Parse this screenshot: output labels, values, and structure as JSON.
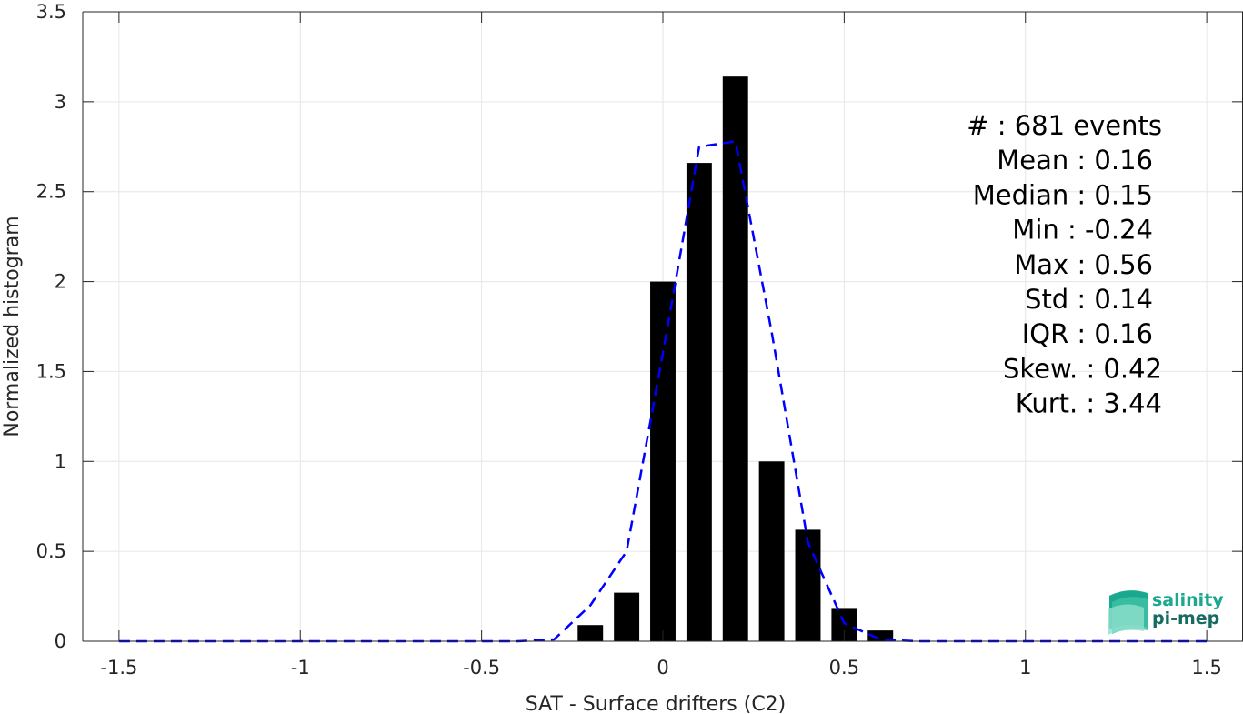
{
  "chart_data": {
    "type": "bar",
    "xlabel": "SAT - Surface drifters (C2)",
    "ylabel": "Normalized histogram",
    "xlim": [
      -1.6,
      1.6
    ],
    "ylim": [
      0,
      3.5
    ],
    "x_ticks": [
      -1.5,
      -1,
      -0.5,
      0,
      0.5,
      1,
      1.5
    ],
    "x_tick_labels": [
      "-1.5",
      "-1",
      "-0.5",
      "0",
      "0.5",
      "1",
      "1.5"
    ],
    "y_ticks": [
      0,
      0.5,
      1,
      1.5,
      2,
      2.5,
      3,
      3.5
    ],
    "y_tick_labels": [
      "0",
      "0.5",
      "1",
      "1.5",
      "2",
      "2.5",
      "3",
      "3.5"
    ],
    "grid": true,
    "bar_width": 0.07,
    "bars": {
      "x": [
        -0.2,
        -0.1,
        0.0,
        0.1,
        0.2,
        0.3,
        0.4,
        0.5,
        0.6
      ],
      "values": [
        0.09,
        0.27,
        2.0,
        2.66,
        3.14,
        1.0,
        0.62,
        0.18,
        0.06
      ],
      "color": "#000000"
    },
    "fit_line": {
      "style": "dashed",
      "color": "#0000ff",
      "x": [
        -1.5,
        -0.6,
        -0.4,
        -0.3,
        -0.2,
        -0.1,
        0.0,
        0.1,
        0.2,
        0.3,
        0.4,
        0.5,
        0.6,
        0.7,
        1.0,
        1.5
      ],
      "y": [
        0,
        0,
        0,
        0.01,
        0.2,
        0.5,
        1.6,
        2.75,
        2.78,
        1.72,
        0.55,
        0.1,
        0.01,
        0,
        0,
        0
      ]
    },
    "stats": [
      {
        "label": "#  ",
        "value": ": 681 events"
      },
      {
        "label": "Mean ",
        "value": ": 0.16"
      },
      {
        "label": "Median ",
        "value": ": 0.15"
      },
      {
        "label": "Min ",
        "value": ": -0.24"
      },
      {
        "label": "Max ",
        "value": ": 0.56"
      },
      {
        "label": "Std ",
        "value": ": 0.14"
      },
      {
        "label": "IQR ",
        "value": ": 0.16"
      },
      {
        "label": "Skew. ",
        "value": ": 0.42"
      },
      {
        "label": "Kurt. ",
        "value": ": 3.44"
      }
    ]
  },
  "logo": {
    "line1": "salinity",
    "line2": "pi-mep",
    "color1": "#1aa88f",
    "color2": "#176b63"
  },
  "colors": {
    "axis": "#262626",
    "grid": "#e6e6e6"
  }
}
